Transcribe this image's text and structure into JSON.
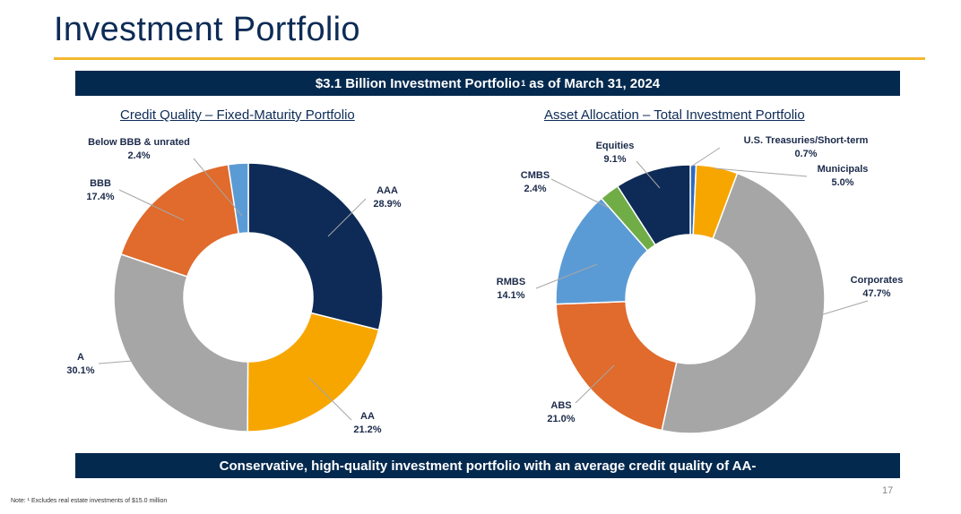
{
  "page": {
    "title": "Investment Portfolio",
    "banner_top_main": "$3.1 Billion Investment Portfolio",
    "banner_top_sup": "1",
    "banner_top_tail": "as of March 31, 2024",
    "banner_bottom": "Conservative, high-quality investment portfolio with an average credit quality of AA-",
    "note": "Note: ¹ Excludes real estate investments of $15.0 million",
    "page_number": "17"
  },
  "chart_data": [
    {
      "type": "pie",
      "title": "Credit Quality – Fixed-Maturity Portfolio",
      "categories": [
        "AAA",
        "AA",
        "A",
        "BBB",
        "Below BBB & unrated"
      ],
      "values": [
        28.9,
        21.2,
        30.1,
        17.4,
        2.4
      ],
      "value_labels": [
        "28.9%",
        "21.2%",
        "30.1%",
        "17.4%",
        "2.4%"
      ],
      "colors": [
        "#0d2b56",
        "#f7a600",
        "#a6a6a6",
        "#e06b2c",
        "#5b9bd5"
      ]
    },
    {
      "type": "pie",
      "title": "Asset Allocation – Total Investment Portfolio",
      "categories": [
        "U.S. Treasuries/Short-term",
        "Municipals",
        "Corporates",
        "ABS",
        "RMBS",
        "CMBS",
        "Equities"
      ],
      "values": [
        0.7,
        5.0,
        47.7,
        21.0,
        14.1,
        2.4,
        9.1
      ],
      "value_labels": [
        "0.7%",
        "5.0%",
        "47.7%",
        "21.0%",
        "14.1%",
        "2.4%",
        "9.1%"
      ],
      "colors": [
        "#2e6bc2",
        "#f7a600",
        "#a6a6a6",
        "#e06b2c",
        "#5b9bd5",
        "#70ad47",
        "#0d2b56"
      ]
    }
  ]
}
